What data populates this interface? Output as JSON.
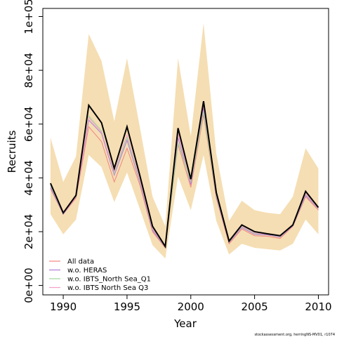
{
  "chart_data": {
    "type": "line",
    "xlabel": "Year",
    "ylabel": "Recruits",
    "xlim": [
      1988.4,
      2010.8
    ],
    "ylim": [
      -3500,
      103000
    ],
    "x_ticks": [
      1990,
      1995,
      2000,
      2005,
      2010
    ],
    "y_ticks": [
      0,
      20000,
      40000,
      60000,
      80000,
      100000
    ],
    "y_tick_labels": [
      "0e+00",
      "2e+04",
      "4e+04",
      "6e+04",
      "8e+04",
      "1e+05"
    ],
    "x": [
      1989,
      1990,
      1991,
      1992,
      1993,
      1994,
      1995,
      1996,
      1997,
      1998,
      1999,
      2000,
      2001,
      2002,
      2003,
      2004,
      2005,
      2006,
      2007,
      2008,
      2009,
      2010
    ],
    "main": {
      "name": "",
      "color": "#000000",
      "values": [
        38000,
        27000,
        33500,
        67000,
        60500,
        43500,
        59000,
        41000,
        22000,
        14500,
        58500,
        39500,
        68500,
        34500,
        16500,
        22500,
        20000,
        19200,
        18500,
        22500,
        35000,
        29000
      ]
    },
    "confidence_band": {
      "color": "#f5deb3",
      "upper": [
        55000,
        38500,
        48000,
        93500,
        83500,
        61000,
        84500,
        59000,
        33000,
        22000,
        84500,
        55500,
        97500,
        49000,
        24000,
        31500,
        28000,
        27000,
        26500,
        33000,
        51000,
        43500
      ],
      "lower": [
        26500,
        19000,
        24500,
        48500,
        44000,
        31000,
        42000,
        28500,
        15000,
        10000,
        40500,
        28000,
        48500,
        24000,
        11500,
        15500,
        14000,
        13500,
        13000,
        15500,
        24500,
        19000
      ]
    },
    "series": [
      {
        "name": "All data",
        "color": "#f28482",
        "values": [
          36000,
          26500,
          32500,
          59000,
          53500,
          38500,
          51000,
          37500,
          20000,
          14000,
          52500,
          36500,
          63500,
          32500,
          15500,
          21000,
          18500,
          18300,
          17500,
          22000,
          33000,
          28000
        ]
      },
      {
        "name": "w.o. HERAS",
        "color": "#b07cd8",
        "values": [
          36500,
          26500,
          33000,
          61500,
          56500,
          41000,
          54000,
          38500,
          20500,
          14200,
          55000,
          37500,
          66000,
          33000,
          16000,
          21500,
          19000,
          18800,
          18000,
          22200,
          33500,
          28500
        ]
      },
      {
        "name": "w.o. IBTS_North Sea_Q1",
        "color": "#9ed99b",
        "values": [
          37000,
          26800,
          33200,
          63000,
          57500,
          41500,
          55000,
          39000,
          21000,
          14300,
          53000,
          38500,
          64500,
          33500,
          16200,
          21800,
          19300,
          19000,
          18200,
          22400,
          34000,
          28600
        ]
      },
      {
        "name": "w.o. IBTS North Sea Q3",
        "color": "#f5a0c8",
        "values": [
          37500,
          26800,
          33000,
          62500,
          57000,
          42000,
          56000,
          39500,
          21200,
          14400,
          56500,
          39000,
          67000,
          34000,
          16300,
          22000,
          19500,
          19000,
          18300,
          22600,
          34200,
          28700
        ]
      }
    ],
    "legend_position": "bottom-left",
    "grid": false
  },
  "credit": "stockassessment.org, herringNS-MV01, r1074"
}
